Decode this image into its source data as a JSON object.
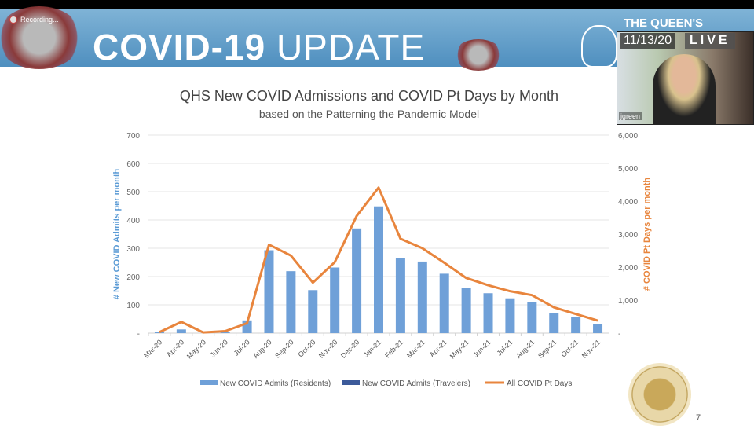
{
  "recording": {
    "label": "Recording..."
  },
  "banner": {
    "title_bold": "COVID-19",
    "title_light": "UPDATE",
    "org": "THE QUEEN'S"
  },
  "video": {
    "date": "11/13/20",
    "live": "LIVE",
    "participant": "jgreen"
  },
  "page_number": "7",
  "chart_data": {
    "type": "bar+line",
    "title": "QHS New COVID Admissions and COVID Pt Days by Month",
    "subtitle": "based on the Patterning the Pandemic Model",
    "ylabel": "# New COVID Admits per month",
    "y2label": "# COVID Pt Days per month",
    "ylim": [
      0,
      700
    ],
    "y2lim": [
      0,
      6000
    ],
    "yticks": [
      "-",
      "100",
      "200",
      "300",
      "400",
      "500",
      "600",
      "700"
    ],
    "y2ticks": [
      "-",
      "1,000",
      "2,000",
      "3,000",
      "4,000",
      "5,000",
      "6,000"
    ],
    "grid": true,
    "legend_position": "bottom",
    "categories": [
      "Mar-20",
      "Apr-20",
      "May-20",
      "Jun-20",
      "Jul-20",
      "Aug-20",
      "Sep-20",
      "Oct-20",
      "Nov-20",
      "Dec-20",
      "Jan-21",
      "Feb-21",
      "Mar-21",
      "Apr-21",
      "May-21",
      "Jun-21",
      "Jul-21",
      "Aug-21",
      "Sep-21",
      "Oct-21",
      "Nov-21"
    ],
    "series": [
      {
        "name": "New COVID Admits (Residents)",
        "type": "bar",
        "axis": "left",
        "color": "#6fa0d8",
        "values": [
          5,
          13,
          0,
          5,
          45,
          293,
          219,
          152,
          232,
          370,
          448,
          265,
          253,
          210,
          160,
          141,
          123,
          110,
          70,
          56,
          33
        ]
      },
      {
        "name": "New COVID Admits (Travelers)",
        "type": "bar",
        "axis": "left",
        "color": "#3c5a9a",
        "values": [
          0,
          0,
          0,
          0,
          0,
          0,
          0,
          0,
          0,
          0,
          0,
          0,
          0,
          0,
          0,
          0,
          0,
          0,
          0,
          0,
          0
        ]
      },
      {
        "name": "All COVID Pt Days",
        "type": "line",
        "axis": "right",
        "color": "#e8853d",
        "values": [
          30,
          340,
          20,
          60,
          300,
          2680,
          2350,
          1530,
          2150,
          3550,
          4410,
          2860,
          2570,
          2130,
          1670,
          1450,
          1270,
          1150,
          780,
          580,
          380
        ]
      }
    ]
  }
}
